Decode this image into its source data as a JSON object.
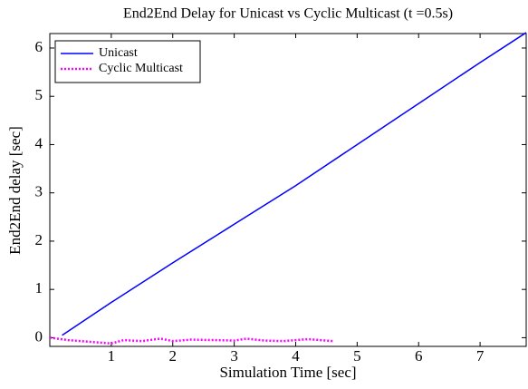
{
  "chart_data": {
    "type": "line",
    "title": "End2End Delay for Unicast vs Cyclic Multicast (t =0.5s)",
    "xlabel": "Simulation Time [sec]",
    "ylabel": "End2End delay [sec]",
    "xlim": [
      0,
      7.75
    ],
    "xticks": [
      1,
      2,
      3,
      4,
      5,
      6,
      7
    ],
    "ylim": [
      -0.18,
      6.3
    ],
    "yticks": [
      0,
      1,
      2,
      3,
      4,
      5,
      6
    ],
    "grid": false,
    "legend": "upper left",
    "series": [
      {
        "name": "Unicast",
        "color": "#0000ff",
        "linestyle": "solid",
        "x": [
          0.2,
          1,
          2,
          3,
          4,
          5,
          6,
          7,
          7.75
        ],
        "values": [
          0.05,
          0.73,
          1.55,
          2.35,
          3.15,
          4.0,
          4.85,
          5.7,
          6.32
        ]
      },
      {
        "name": "Cyclic Multicast",
        "color": "#ff00ff",
        "linestyle": "dotted",
        "x": [
          0,
          0.3,
          0.6,
          1,
          1.2,
          1.5,
          1.8,
          2,
          2.3,
          2.7,
          3,
          3.2,
          3.5,
          3.8,
          4,
          4.2,
          4.6
        ],
        "values": [
          0.0,
          -0.05,
          -0.08,
          -0.12,
          -0.05,
          -0.07,
          -0.02,
          -0.07,
          -0.04,
          -0.05,
          -0.06,
          -0.02,
          -0.06,
          -0.07,
          -0.05,
          -0.03,
          -0.07
        ]
      }
    ]
  }
}
